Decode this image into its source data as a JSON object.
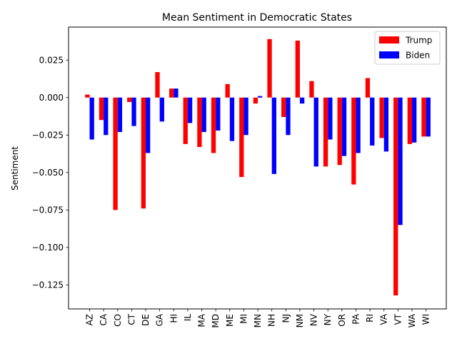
{
  "chart_data": {
    "type": "bar",
    "title": "Mean Sentiment in Democratic States",
    "xlabel": "",
    "ylabel": "Sentiment",
    "ylim": [
      -0.141,
      0.047
    ],
    "yticks": [
      "0.025",
      "0.000",
      "−0.025",
      "−0.050",
      "−0.075",
      "−0.100",
      "−0.125"
    ],
    "ytick_values": [
      0.025,
      0.0,
      -0.025,
      -0.05,
      -0.075,
      -0.1,
      -0.125
    ],
    "categories": [
      "AZ",
      "CA",
      "CO",
      "CT",
      "DE",
      "GA",
      "HI",
      "IL",
      "MA",
      "MD",
      "ME",
      "MI",
      "MN",
      "NH",
      "NJ",
      "NM",
      "NV",
      "NY",
      "OR",
      "PA",
      "RI",
      "VA",
      "VT",
      "WA",
      "WI"
    ],
    "series": [
      {
        "name": "Trump",
        "color": "#ff0000",
        "values": [
          0.002,
          -0.015,
          -0.075,
          -0.003,
          -0.074,
          0.017,
          0.006,
          -0.031,
          -0.033,
          -0.037,
          0.009,
          -0.053,
          -0.004,
          0.039,
          -0.013,
          0.038,
          0.011,
          -0.046,
          -0.045,
          -0.058,
          0.013,
          -0.027,
          -0.132,
          -0.031,
          -0.026
        ]
      },
      {
        "name": "Biden",
        "color": "#0000ff",
        "values": [
          -0.028,
          -0.025,
          -0.023,
          -0.019,
          -0.037,
          -0.016,
          0.006,
          -0.017,
          -0.023,
          -0.022,
          -0.029,
          -0.025,
          0.001,
          -0.051,
          -0.025,
          -0.004,
          -0.046,
          -0.028,
          -0.039,
          -0.037,
          -0.032,
          -0.036,
          -0.085,
          -0.03,
          -0.026
        ]
      }
    ],
    "legend": {
      "placement": "top-right"
    },
    "grid": false
  }
}
